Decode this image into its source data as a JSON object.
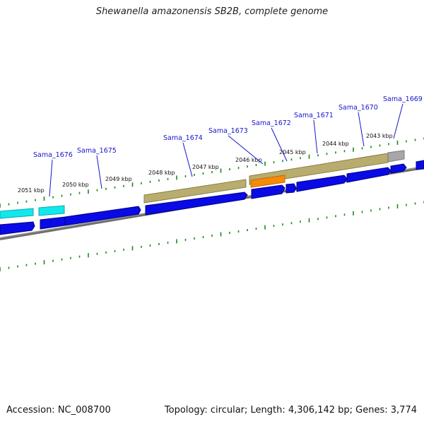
{
  "title": "Shewanella amazonensis SB2B, complete genome",
  "footer": {
    "accession": "Accession: NC_008700",
    "topology": "Topology: circular; Length: 4,306,142 bp; Genes: 3,774"
  },
  "ticks": [
    "2051 kbp",
    "2050 kbp",
    "2049 kbp",
    "2048 kbp",
    "2047 kbp",
    "2046 kbp",
    "2045 kbp",
    "2044 kbp",
    "2043 kbp"
  ],
  "genes": [
    "Sama_1676",
    "Sama_1675",
    "Sama_1674",
    "Sama_1673",
    "Sama_1672",
    "Sama_1671",
    "Sama_1670",
    "Sama_1669"
  ],
  "colors": {
    "cds": "#0a0ae6",
    "rna_cyan": "#11e8ee",
    "olive": "#b5a96a",
    "orange": "#f58a0b",
    "gray": "#a7a7a7",
    "backbone": "#7a7a7a",
    "tick": "#1a8a1a",
    "label": "#1515cc"
  }
}
